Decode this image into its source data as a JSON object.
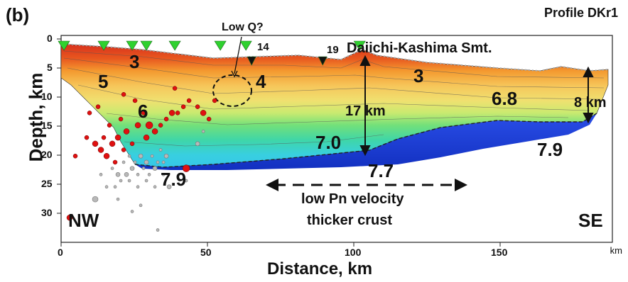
{
  "panel_label": "(b)",
  "profile_title": "Profile DKr1",
  "axes": {
    "ylabel": "Depth, km",
    "xlabel": "Distance, km",
    "x_unit": "km",
    "y_ticks": [
      "0",
      "5",
      "10",
      "15",
      "20",
      "25",
      "30"
    ],
    "x_ticks": [
      "0",
      "50",
      "100",
      "150"
    ],
    "x_range": [
      0,
      190
    ],
    "y_range": [
      0,
      33
    ]
  },
  "annotations": {
    "low_q": "Low Q?",
    "seamount": "Daiichi-Kashima Smt.",
    "obs_14": "14",
    "obs_19": "19",
    "thickness_left": "17 km",
    "thickness_right": "8 km",
    "low_pn_line1": "low Pn velocity",
    "low_pn_line2": "thicker crust",
    "nw": "NW",
    "se": "SE"
  },
  "velocity_labels": {
    "v3_left": "3",
    "v5": "5",
    "v4": "4",
    "v6": "6",
    "v3_right": "3",
    "v6_8": "6.8",
    "v7_0": "7.0",
    "v7_7": "7.7",
    "v7_9_right": "7.9",
    "v7_9_left": "7.9"
  },
  "colors": {
    "upper_crust": "#d63a1c",
    "mid_crust": "#f2a030",
    "lower_crust_yellow": "#f4e070",
    "lower_crust_green": "#4ed39a",
    "deep_cyan": "#38d0e0",
    "mantle": "#1f3fd8",
    "eq_red": "#e01010",
    "eq_gray": "#b8b8b8",
    "obs_marker": "#2fd12f"
  },
  "obs_positions_km": [
    1,
    15,
    25,
    30,
    40,
    56,
    65,
    67,
    92,
    105
  ],
  "earthquakes_red": [
    {
      "x": 5,
      "y": 19,
      "r": 3
    },
    {
      "x": 9,
      "y": 16,
      "r": 3
    },
    {
      "x": 10,
      "y": 12,
      "r": 3
    },
    {
      "x": 12,
      "y": 17,
      "r": 4
    },
    {
      "x": 13,
      "y": 11,
      "r": 3
    },
    {
      "x": 14,
      "y": 18,
      "r": 4
    },
    {
      "x": 15,
      "y": 16,
      "r": 3
    },
    {
      "x": 16,
      "y": 19,
      "r": 4
    },
    {
      "x": 17,
      "y": 14,
      "r": 3
    },
    {
      "x": 18,
      "y": 17,
      "r": 4
    },
    {
      "x": 19,
      "y": 20,
      "r": 3
    },
    {
      "x": 20,
      "y": 16,
      "r": 4
    },
    {
      "x": 21,
      "y": 13,
      "r": 3
    },
    {
      "x": 22,
      "y": 18,
      "r": 3
    },
    {
      "x": 23,
      "y": 15,
      "r": 4
    },
    {
      "x": 25,
      "y": 17,
      "r": 3
    },
    {
      "x": 26,
      "y": 10,
      "r": 3
    },
    {
      "x": 27,
      "y": 14,
      "r": 4
    },
    {
      "x": 29,
      "y": 12,
      "r": 3
    },
    {
      "x": 30,
      "y": 16,
      "r": 4
    },
    {
      "x": 31,
      "y": 14,
      "r": 5
    },
    {
      "x": 33,
      "y": 15,
      "r": 4
    },
    {
      "x": 35,
      "y": 14,
      "r": 3
    },
    {
      "x": 37,
      "y": 13,
      "r": 3
    },
    {
      "x": 39,
      "y": 12,
      "r": 4
    },
    {
      "x": 41,
      "y": 12,
      "r": 3
    },
    {
      "x": 43,
      "y": 11,
      "r": 3
    },
    {
      "x": 45,
      "y": 10,
      "r": 3
    },
    {
      "x": 48,
      "y": 11,
      "r": 3
    },
    {
      "x": 50,
      "y": 12,
      "r": 4
    },
    {
      "x": 52,
      "y": 13,
      "r": 3
    },
    {
      "x": 54,
      "y": 10,
      "r": 3
    },
    {
      "x": 22,
      "y": 9,
      "r": 3
    },
    {
      "x": 40,
      "y": 8,
      "r": 3
    },
    {
      "x": 44,
      "y": 21,
      "r": 5
    },
    {
      "x": 3,
      "y": 29,
      "r": 4
    }
  ],
  "earthquakes_gray": [
    {
      "x": 18,
      "y": 21,
      "r": 2
    },
    {
      "x": 20,
      "y": 22,
      "r": 3
    },
    {
      "x": 22,
      "y": 20,
      "r": 2
    },
    {
      "x": 23,
      "y": 22,
      "r": 3
    },
    {
      "x": 24,
      "y": 19,
      "r": 2
    },
    {
      "x": 25,
      "y": 21,
      "r": 3
    },
    {
      "x": 26,
      "y": 20,
      "r": 2
    },
    {
      "x": 27,
      "y": 22,
      "r": 2
    },
    {
      "x": 28,
      "y": 19,
      "r": 3
    },
    {
      "x": 29,
      "y": 21,
      "r": 2
    },
    {
      "x": 30,
      "y": 20,
      "r": 3
    },
    {
      "x": 31,
      "y": 22,
      "r": 2
    },
    {
      "x": 32,
      "y": 19,
      "r": 2
    },
    {
      "x": 33,
      "y": 21,
      "r": 3
    },
    {
      "x": 34,
      "y": 20,
      "r": 2
    },
    {
      "x": 35,
      "y": 18,
      "r": 2
    },
    {
      "x": 36,
      "y": 20,
      "r": 2
    },
    {
      "x": 37,
      "y": 19,
      "r": 3
    },
    {
      "x": 21,
      "y": 23,
      "r": 2
    },
    {
      "x": 24,
      "y": 23,
      "r": 2
    },
    {
      "x": 27,
      "y": 24,
      "r": 2
    },
    {
      "x": 30,
      "y": 23,
      "r": 2
    },
    {
      "x": 36,
      "y": 22,
      "r": 2
    },
    {
      "x": 14,
      "y": 22,
      "r": 2
    },
    {
      "x": 16,
      "y": 24,
      "r": 2
    },
    {
      "x": 12,
      "y": 26,
      "r": 4
    },
    {
      "x": 38,
      "y": 24,
      "r": 3
    },
    {
      "x": 44,
      "y": 23,
      "r": 2
    },
    {
      "x": 48,
      "y": 17,
      "r": 3
    },
    {
      "x": 50,
      "y": 15,
      "r": 2
    },
    {
      "x": 20,
      "y": 26,
      "r": 2
    },
    {
      "x": 25,
      "y": 28,
      "r": 2
    },
    {
      "x": 28,
      "y": 27,
      "r": 2
    },
    {
      "x": 34,
      "y": 31,
      "r": 2
    },
    {
      "x": 19,
      "y": 24,
      "r": 2
    },
    {
      "x": 33,
      "y": 24,
      "r": 2
    }
  ]
}
